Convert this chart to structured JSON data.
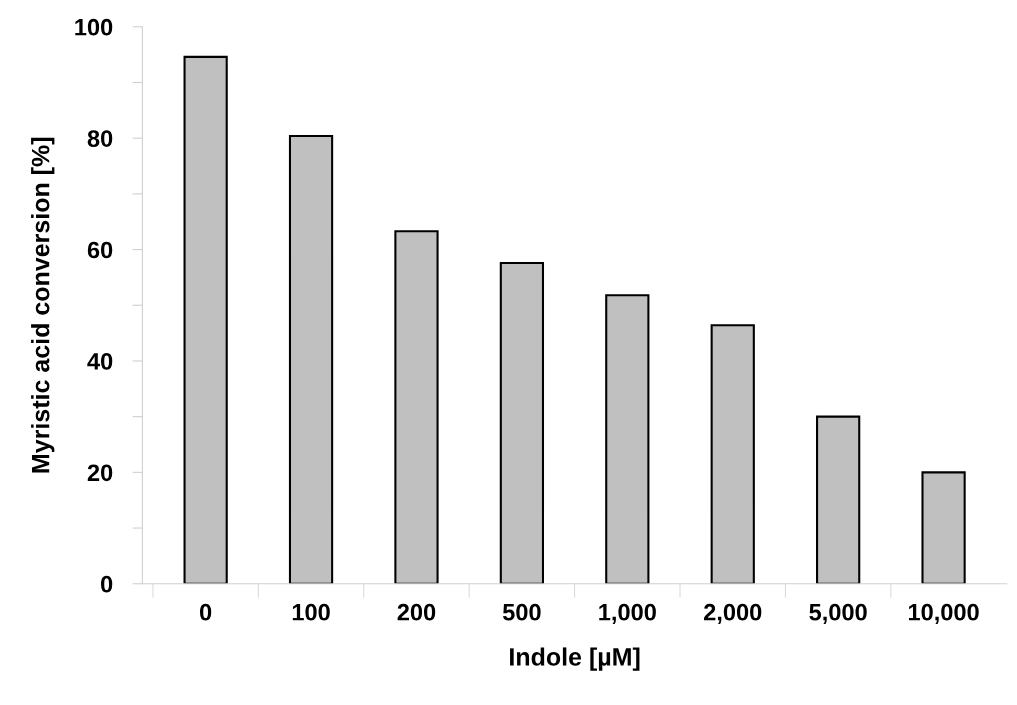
{
  "chart_data": {
    "type": "bar",
    "xlabel": "Indole [µM]",
    "ylabel": "Myristic acid conversion [%]",
    "categories": [
      "0",
      "100",
      "200",
      "500",
      "1,000",
      "2,000",
      "5,000",
      "10,000"
    ],
    "values": [
      94.6,
      80.4,
      63.3,
      57.6,
      51.8,
      46.4,
      30.0,
      20.0
    ],
    "color": "#c0c0c0",
    "ylim": [
      0,
      100
    ],
    "yticks": [
      0,
      {
        "value": 10,
        "label": null
      },
      20,
      {
        "value": 30,
        "label": null
      },
      40,
      {
        "value": 50,
        "label": null
      },
      60,
      {
        "value": 70,
        "label": null
      },
      80,
      {
        "value": 90,
        "label": null
      },
      100
    ],
    "grid": false
  }
}
